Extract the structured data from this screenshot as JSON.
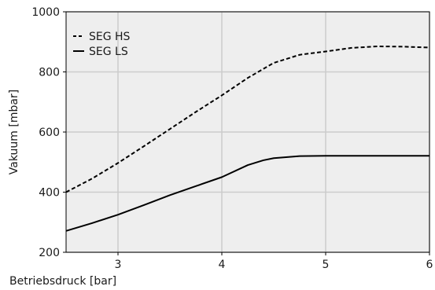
{
  "chart_data": {
    "type": "line",
    "title": "",
    "xlabel": "Betriebsdruck [bar]",
    "ylabel": "Vakuum [mbar]",
    "xlim": [
      2.5,
      6
    ],
    "ylim": [
      200,
      1000
    ],
    "xticks": [
      3,
      4,
      5,
      6
    ],
    "yticks": [
      200,
      400,
      600,
      800,
      1000
    ],
    "grid": true,
    "legend_position": "top-left",
    "background_color": "#eeeeee",
    "grid_color": "#cccccc",
    "series": [
      {
        "name": "SEG HS",
        "style": "dashed",
        "color": "#000000",
        "x": [
          2.5,
          2.75,
          3.0,
          3.25,
          3.5,
          3.75,
          4.0,
          4.25,
          4.5,
          4.75,
          5.0,
          5.25,
          5.5,
          5.75,
          6.0
        ],
        "y": [
          400,
          445,
          497,
          553,
          610,
          667,
          722,
          780,
          830,
          857,
          868,
          880,
          885,
          884,
          881
        ]
      },
      {
        "name": "SEG LS",
        "style": "solid",
        "color": "#000000",
        "x": [
          2.5,
          2.75,
          3.0,
          3.25,
          3.5,
          3.75,
          4.0,
          4.25,
          4.4,
          4.5,
          4.75,
          5.0,
          5.25,
          5.5,
          5.75,
          6.0
        ],
        "y": [
          271,
          297,
          325,
          357,
          390,
          420,
          450,
          490,
          506,
          513,
          520,
          521,
          521,
          521,
          521,
          521
        ]
      }
    ]
  }
}
